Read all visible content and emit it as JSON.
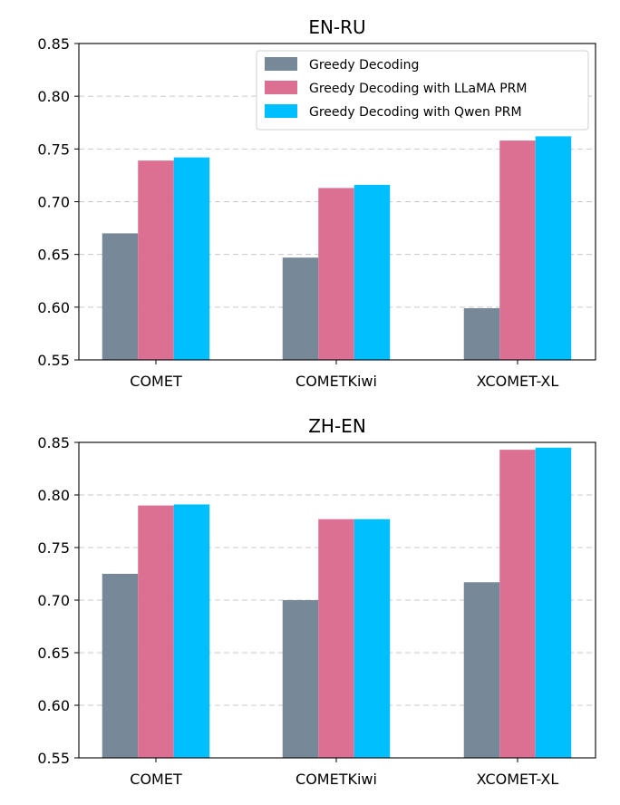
{
  "chart_data": [
    {
      "type": "bar",
      "title": "EN-RU",
      "categories": [
        "COMET",
        "COMETKiwi",
        "XCOMET-XL"
      ],
      "ylim": [
        0.55,
        0.85
      ],
      "yticks": [
        "0.55",
        "0.60",
        "0.65",
        "0.70",
        "0.75",
        "0.80",
        "0.85"
      ],
      "grid": "y-dashed",
      "legend_position": "top-right",
      "series": [
        {
          "name": "Greedy Decoding",
          "color": "#778899",
          "values": [
            0.67,
            0.647,
            0.599
          ]
        },
        {
          "name": "Greedy Decoding with LLaMA PRM",
          "color": "#db7093",
          "values": [
            0.739,
            0.713,
            0.758
          ]
        },
        {
          "name": "Greedy Decoding with Qwen PRM",
          "color": "#00bfff",
          "values": [
            0.742,
            0.716,
            0.762
          ]
        }
      ]
    },
    {
      "type": "bar",
      "title": "ZH-EN",
      "categories": [
        "COMET",
        "COMETKiwi",
        "XCOMET-XL"
      ],
      "ylim": [
        0.55,
        0.85
      ],
      "yticks": [
        "0.55",
        "0.60",
        "0.65",
        "0.70",
        "0.75",
        "0.80",
        "0.85"
      ],
      "grid": "y-dashed",
      "series": [
        {
          "color": "#778899",
          "values": [
            0.725,
            0.7,
            0.717
          ]
        },
        {
          "color": "#db7093",
          "values": [
            0.79,
            0.777,
            0.843
          ]
        },
        {
          "color": "#00bfff",
          "values": [
            0.791,
            0.777,
            0.845
          ]
        }
      ]
    }
  ]
}
